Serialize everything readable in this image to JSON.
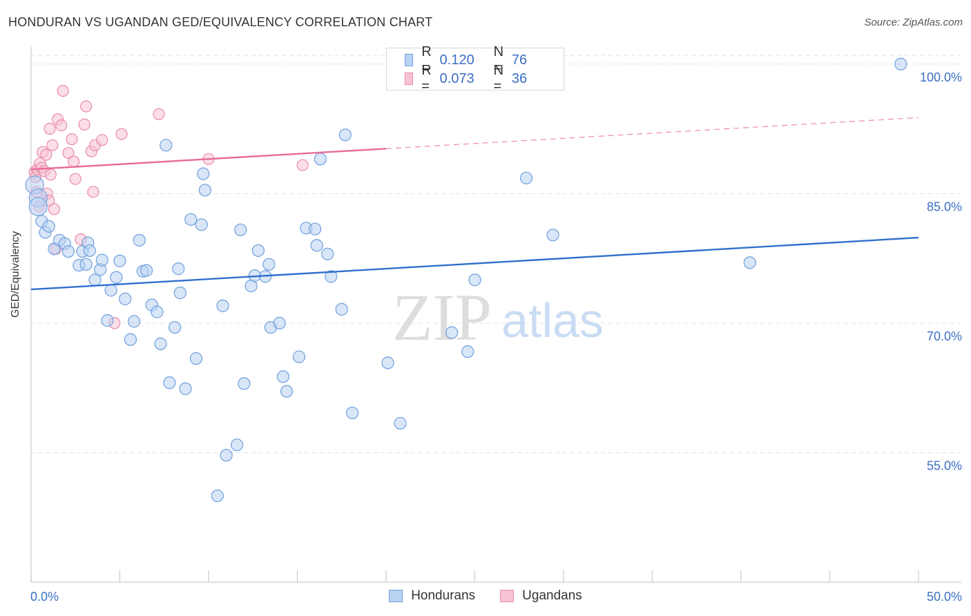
{
  "header": {
    "title": "HONDURAN VS UGANDAN GED/EQUIVALENCY CORRELATION CHART",
    "source": "Source: ZipAtlas.com"
  },
  "watermark": {
    "zip": "ZIP",
    "atlas": "atlas"
  },
  "legend_stats": [
    {
      "r_label": "R =",
      "r_value": "0.120",
      "n_label": "N =",
      "n_value": "76"
    },
    {
      "r_label": "R =",
      "r_value": "0.073",
      "n_label": "N =",
      "n_value": "36"
    }
  ],
  "colors": {
    "hondurans_fill": "#b8d2f3",
    "hondurans_stroke": "#6f9fdc",
    "hondurans_line": "#2f6fce",
    "ugandans_fill": "#f7c2d4",
    "ugandans_stroke": "#e88aaa",
    "ugandans_line": "#e86a97",
    "axis_text": "#3b6fc4",
    "grid": "#e2e2e2"
  },
  "chart_data": {
    "type": "scatter",
    "title": "HONDURAN VS UGANDAN GED/EQUIVALENCY CORRELATION CHART",
    "xlabel": "",
    "ylabel": "GED/Equivalency",
    "xlim": [
      0,
      50
    ],
    "ylim": [
      40,
      101.5
    ],
    "x_tick_labels": [
      "0.0%",
      "50.0%"
    ],
    "y_ticks": [
      55,
      70,
      85,
      100
    ],
    "y_tick_labels": [
      "55.0%",
      "70.0%",
      "85.0%",
      "100.0%"
    ],
    "grid": true,
    "legend_position": "bottom",
    "series": [
      {
        "name": "Hondurans",
        "r": 0.12,
        "n": 76,
        "trend": {
          "x": [
            0,
            50
          ],
          "y": [
            73.9,
            79.9
          ],
          "dashed_from": null
        },
        "points": [
          [
            0.2,
            86.0
          ],
          [
            0.4,
            84.5
          ],
          [
            0.4,
            83.5
          ],
          [
            0.6,
            81.8
          ],
          [
            0.8,
            80.5
          ],
          [
            1.0,
            81.2
          ],
          [
            1.3,
            78.6
          ],
          [
            1.6,
            79.6
          ],
          [
            1.9,
            79.2
          ],
          [
            2.1,
            78.3
          ],
          [
            2.7,
            76.7
          ],
          [
            2.9,
            78.3
          ],
          [
            3.1,
            76.8
          ],
          [
            3.2,
            79.3
          ],
          [
            3.3,
            78.4
          ],
          [
            3.6,
            75.0
          ],
          [
            3.9,
            76.2
          ],
          [
            4.0,
            77.3
          ],
          [
            4.3,
            70.3
          ],
          [
            4.5,
            73.8
          ],
          [
            4.8,
            75.3
          ],
          [
            5.0,
            77.2
          ],
          [
            5.3,
            72.8
          ],
          [
            5.6,
            68.1
          ],
          [
            5.8,
            70.2
          ],
          [
            6.1,
            79.6
          ],
          [
            6.3,
            76.0
          ],
          [
            6.5,
            76.1
          ],
          [
            6.8,
            72.1
          ],
          [
            7.1,
            71.3
          ],
          [
            7.3,
            67.6
          ],
          [
            7.6,
            90.6
          ],
          [
            7.8,
            63.1
          ],
          [
            8.1,
            69.5
          ],
          [
            8.3,
            76.3
          ],
          [
            8.4,
            73.5
          ],
          [
            8.7,
            62.4
          ],
          [
            9.0,
            82.0
          ],
          [
            9.3,
            65.9
          ],
          [
            9.6,
            81.4
          ],
          [
            9.7,
            87.3
          ],
          [
            9.8,
            85.4
          ],
          [
            10.5,
            50.0
          ],
          [
            10.8,
            72.0
          ],
          [
            11.0,
            54.7
          ],
          [
            11.6,
            55.9
          ],
          [
            11.8,
            80.8
          ],
          [
            12.0,
            63.0
          ],
          [
            12.4,
            74.3
          ],
          [
            12.6,
            75.5
          ],
          [
            12.8,
            78.4
          ],
          [
            13.2,
            75.4
          ],
          [
            13.4,
            76.8
          ],
          [
            13.5,
            69.5
          ],
          [
            14.0,
            70.0
          ],
          [
            14.2,
            63.8
          ],
          [
            14.4,
            62.1
          ],
          [
            15.1,
            66.1
          ],
          [
            15.5,
            81.0
          ],
          [
            16.0,
            80.9
          ],
          [
            16.1,
            79.0
          ],
          [
            16.3,
            89.0
          ],
          [
            16.7,
            78.0
          ],
          [
            16.9,
            75.4
          ],
          [
            17.5,
            71.6
          ],
          [
            17.7,
            91.8
          ],
          [
            18.1,
            59.6
          ],
          [
            20.1,
            65.4
          ],
          [
            20.8,
            58.4
          ],
          [
            23.7,
            68.9
          ],
          [
            24.6,
            66.7
          ],
          [
            25.0,
            75.0
          ],
          [
            27.9,
            86.8
          ],
          [
            29.4,
            80.2
          ],
          [
            40.5,
            77.0
          ],
          [
            49.0,
            100.0
          ]
        ]
      },
      {
        "name": "Ugandans",
        "r": 0.073,
        "n": 36,
        "trend": {
          "x": [
            0,
            50
          ],
          "y": [
            87.8,
            93.8
          ],
          "dashed_from": 20
        },
        "points": [
          [
            0.2,
            87.5
          ],
          [
            0.25,
            86.9
          ],
          [
            0.3,
            85.2
          ],
          [
            0.35,
            87.8
          ],
          [
            0.45,
            83.5
          ],
          [
            0.5,
            88.5
          ],
          [
            0.6,
            88.0
          ],
          [
            0.65,
            89.8
          ],
          [
            0.75,
            87.6
          ],
          [
            0.85,
            89.5
          ],
          [
            0.9,
            85.0
          ],
          [
            1.0,
            84.2
          ],
          [
            1.05,
            92.5
          ],
          [
            1.1,
            87.2
          ],
          [
            1.2,
            90.6
          ],
          [
            1.3,
            83.2
          ],
          [
            1.4,
            78.6
          ],
          [
            1.5,
            93.6
          ],
          [
            1.7,
            92.9
          ],
          [
            1.8,
            96.9
          ],
          [
            2.1,
            89.7
          ],
          [
            2.3,
            91.3
          ],
          [
            2.4,
            88.7
          ],
          [
            2.5,
            86.7
          ],
          [
            2.8,
            79.7
          ],
          [
            3.0,
            93.0
          ],
          [
            3.1,
            95.1
          ],
          [
            3.4,
            89.9
          ],
          [
            3.5,
            85.2
          ],
          [
            3.6,
            90.6
          ],
          [
            4.0,
            91.2
          ],
          [
            4.7,
            70.0
          ],
          [
            5.1,
            91.9
          ],
          [
            7.2,
            94.2
          ],
          [
            10.0,
            89.0
          ],
          [
            15.3,
            88.3
          ]
        ]
      }
    ]
  }
}
